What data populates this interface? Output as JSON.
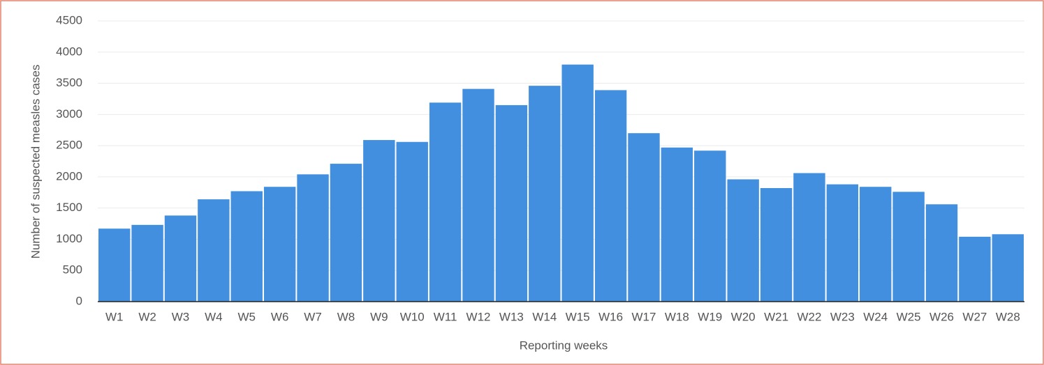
{
  "chart_data": {
    "type": "bar",
    "x_label": "Reporting  weeks",
    "y_label": "Number of suspected measles  cases",
    "categories": [
      "W1",
      "W2",
      "W3",
      "W4",
      "W5",
      "W6",
      "W7",
      "W8",
      "W9",
      "W10",
      "W11",
      "W12",
      "W13",
      "W14",
      "W15",
      "W16",
      "W17",
      "W18",
      "W19",
      "W20",
      "W21",
      "W22",
      "W23",
      "W24",
      "W25",
      "W26",
      "W27",
      "W28"
    ],
    "values": [
      1170,
      1230,
      1380,
      1640,
      1770,
      1840,
      2040,
      2210,
      2590,
      2560,
      3190,
      3410,
      3150,
      3460,
      3800,
      3390,
      2700,
      2470,
      2420,
      1960,
      1820,
      2060,
      1880,
      1840,
      1760,
      1560,
      1040,
      1080
    ],
    "color": "#418fde",
    "ylim": [
      0,
      4500
    ],
    "yticks": [
      0,
      500,
      1000,
      1500,
      2000,
      2500,
      3000,
      3500,
      4000,
      4500
    ],
    "grid": true
  }
}
